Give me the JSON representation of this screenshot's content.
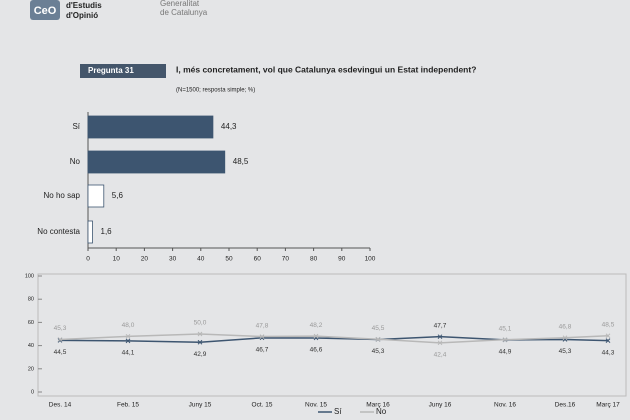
{
  "header": {
    "logo": "CeO",
    "org": [
      "d'Estudis",
      "d'Opinió"
    ],
    "gov": [
      "Generalitat",
      "de Catalunya"
    ]
  },
  "chart_data": [
    {
      "type": "bar",
      "orientation": "horizontal",
      "label": "Pregunta 31",
      "title": "I, més concretament, vol que Catalunya esdevingui un Estat independent?",
      "subtitle": "(N=1500; resposta simple; %)",
      "categories": [
        "Sí",
        "No",
        "No ho sap",
        "No contesta"
      ],
      "values": [
        44.3,
        48.5,
        5.6,
        1.6
      ],
      "value_labels": [
        "44,3",
        "48,5",
        "5,6",
        "1,6"
      ],
      "colors": [
        "#3d5570",
        "#3d5570",
        "#ffffff",
        "#ffffff"
      ],
      "xlim": [
        0,
        100
      ],
      "xticks": [
        0,
        10,
        20,
        30,
        40,
        50,
        60,
        70,
        80,
        90,
        100
      ]
    },
    {
      "type": "line",
      "categories": [
        "Des. 14",
        "Feb. 15",
        "Juny 15",
        "Oct. 15",
        "Nov. 15",
        "Març 16",
        "Juny 16",
        "Nov. 16",
        "Des.16",
        "Març 17"
      ],
      "series": [
        {
          "name": "Sí",
          "color": "#3d5570",
          "values": [
            44.5,
            44.1,
            42.9,
            46.7,
            46.6,
            45.3,
            47.7,
            44.9,
            45.3,
            44.3
          ],
          "value_labels": [
            "44,5",
            "44,1",
            "42,9",
            "46,7",
            "46,6",
            "45,3",
            "47,7",
            "44,9",
            "45,3",
            "44,3"
          ]
        },
        {
          "name": "No",
          "color": "#b8b8b8",
          "values": [
            45.3,
            48.0,
            50.0,
            47.8,
            48.2,
            45.5,
            42.4,
            45.1,
            46.8,
            48.5
          ],
          "value_labels": [
            "45,3",
            "48,0",
            "50,0",
            "47,8",
            "48,2",
            "45,5",
            "42,4",
            "45,1",
            "46,8",
            "48,5"
          ]
        }
      ],
      "ylim": [
        0,
        100
      ],
      "yticks": [
        0,
        20,
        40,
        60,
        80,
        100
      ],
      "legend": "bottom"
    }
  ]
}
